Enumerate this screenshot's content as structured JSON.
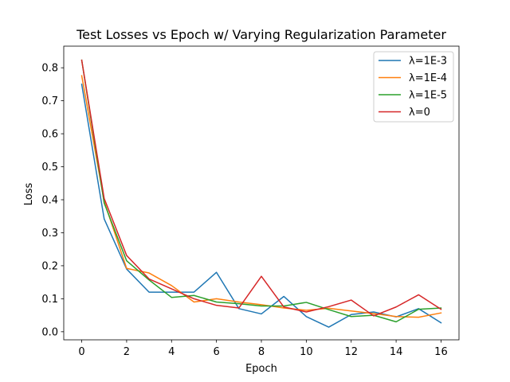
{
  "chart_data": {
    "type": "line",
    "title": "Test Losses vs Epoch w/ Varying Regularization Parameter",
    "xlabel": "Epoch",
    "ylabel": "Loss",
    "xlim": [
      -0.8,
      16.8
    ],
    "ylim": [
      -0.0245,
      0.8655
    ],
    "xticks": [
      0,
      2,
      4,
      6,
      8,
      10,
      12,
      14,
      16
    ],
    "xtick_labels": [
      "0",
      "2",
      "4",
      "6",
      "8",
      "10",
      "12",
      "14",
      "16"
    ],
    "yticks": [
      0.0,
      0.1,
      0.2,
      0.3,
      0.4,
      0.5,
      0.6,
      0.7,
      0.8
    ],
    "ytick_labels": [
      "0.0",
      "0.1",
      "0.2",
      "0.3",
      "0.4",
      "0.5",
      "0.6",
      "0.7",
      "0.8"
    ],
    "grid": false,
    "legend_position": "top-right",
    "x": [
      0,
      1,
      2,
      3,
      4,
      5,
      6,
      7,
      8,
      9,
      10,
      11,
      12,
      13,
      14,
      15,
      16
    ],
    "series": [
      {
        "name": "λ=1E-3",
        "color": "#1f77b4",
        "values": [
          0.75,
          0.342,
          0.19,
          0.12,
          0.12,
          0.12,
          0.18,
          0.07,
          0.054,
          0.107,
          0.046,
          0.014,
          0.052,
          0.06,
          0.045,
          0.07,
          0.027
        ]
      },
      {
        "name": "λ=1E-4",
        "color": "#ff7f0e",
        "values": [
          0.776,
          0.395,
          0.192,
          0.178,
          0.14,
          0.09,
          0.1,
          0.09,
          0.082,
          0.072,
          0.065,
          0.071,
          0.063,
          0.055,
          0.046,
          0.044,
          0.057
        ]
      },
      {
        "name": "λ=1E-5",
        "color": "#2ca02c",
        "values": [
          0.823,
          0.39,
          0.215,
          0.157,
          0.104,
          0.11,
          0.09,
          0.085,
          0.078,
          0.078,
          0.089,
          0.067,
          0.046,
          0.05,
          0.03,
          0.068,
          0.072
        ]
      },
      {
        "name": "λ=0",
        "color": "#d62728",
        "values": [
          0.823,
          0.404,
          0.231,
          0.16,
          0.13,
          0.1,
          0.08,
          0.072,
          0.168,
          0.075,
          0.06,
          0.076,
          0.096,
          0.048,
          0.075,
          0.112,
          0.068
        ]
      }
    ]
  }
}
